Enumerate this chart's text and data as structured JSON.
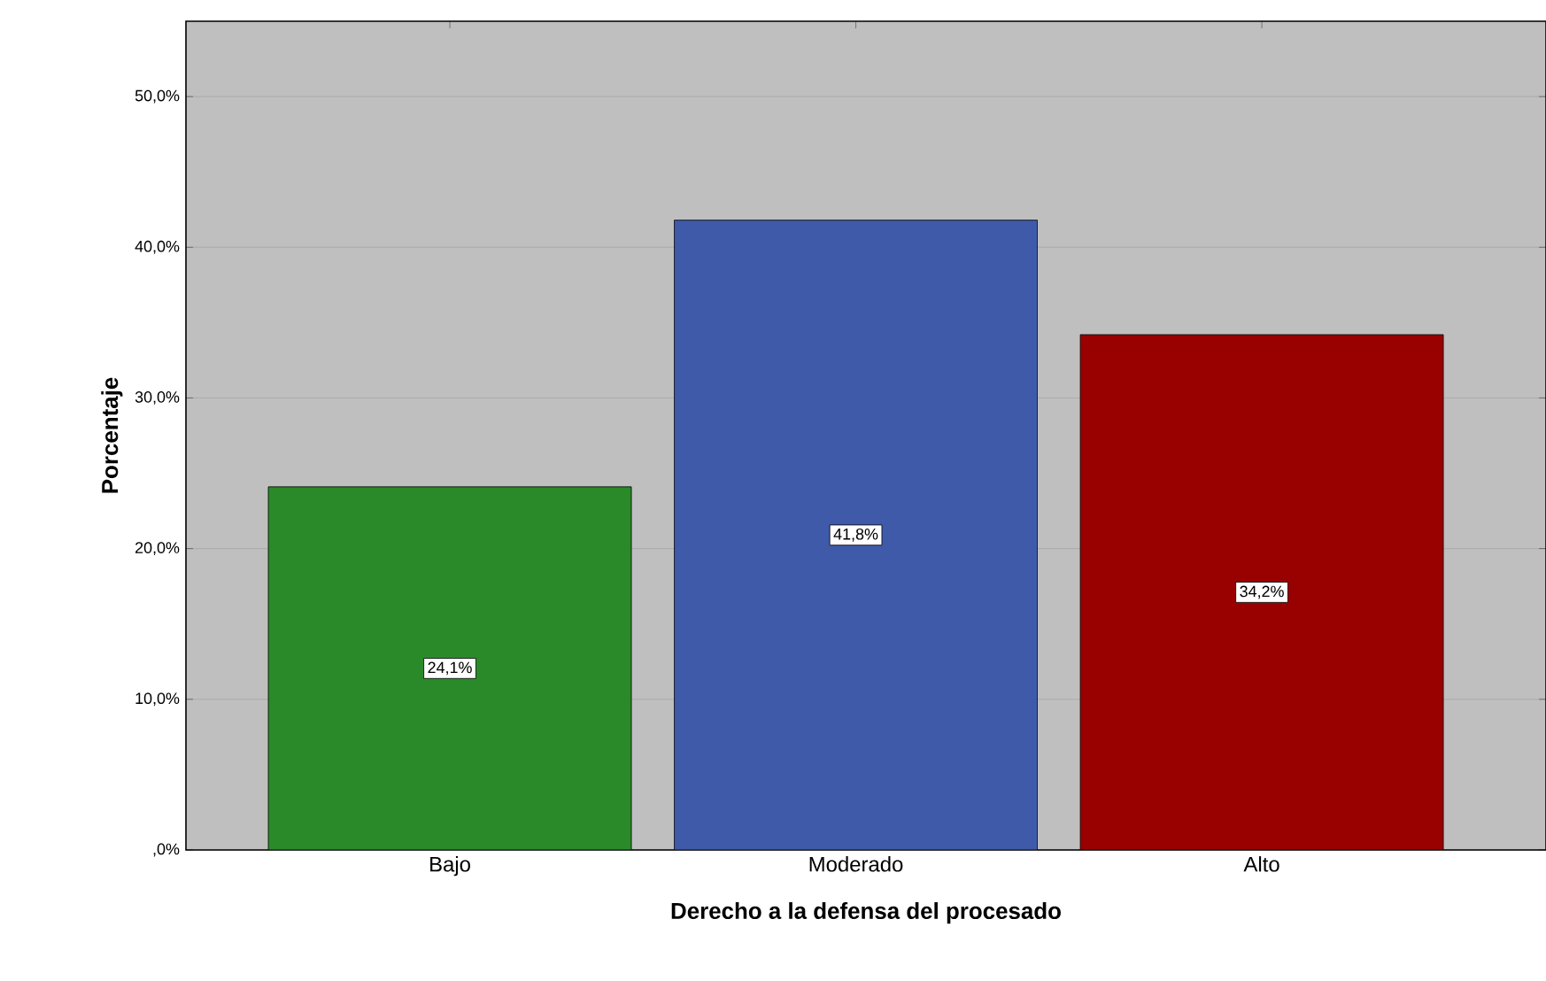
{
  "chart_data": {
    "type": "bar",
    "xlabel": "Derecho a la defensa del procesado",
    "ylabel": "Porcentaje",
    "categories": [
      "Bajo",
      "Moderado",
      "Alto"
    ],
    "values": [
      24.1,
      41.8,
      34.2
    ],
    "colors": [
      "#2a8a2a",
      "#3f5aa8",
      "#990000"
    ],
    "value_labels": [
      "24,1%",
      "41,8%",
      "34,2%"
    ],
    "ylim": [
      0,
      55
    ],
    "yticks": [
      {
        "value": 0,
        "label": ",0%"
      },
      {
        "value": 10,
        "label": "10,0%"
      },
      {
        "value": 20,
        "label": "20,0%"
      },
      {
        "value": 30,
        "label": "30,0%"
      },
      {
        "value": 40,
        "label": "40,0%"
      },
      {
        "value": 50,
        "label": "50,0%"
      }
    ],
    "grid": "y"
  }
}
